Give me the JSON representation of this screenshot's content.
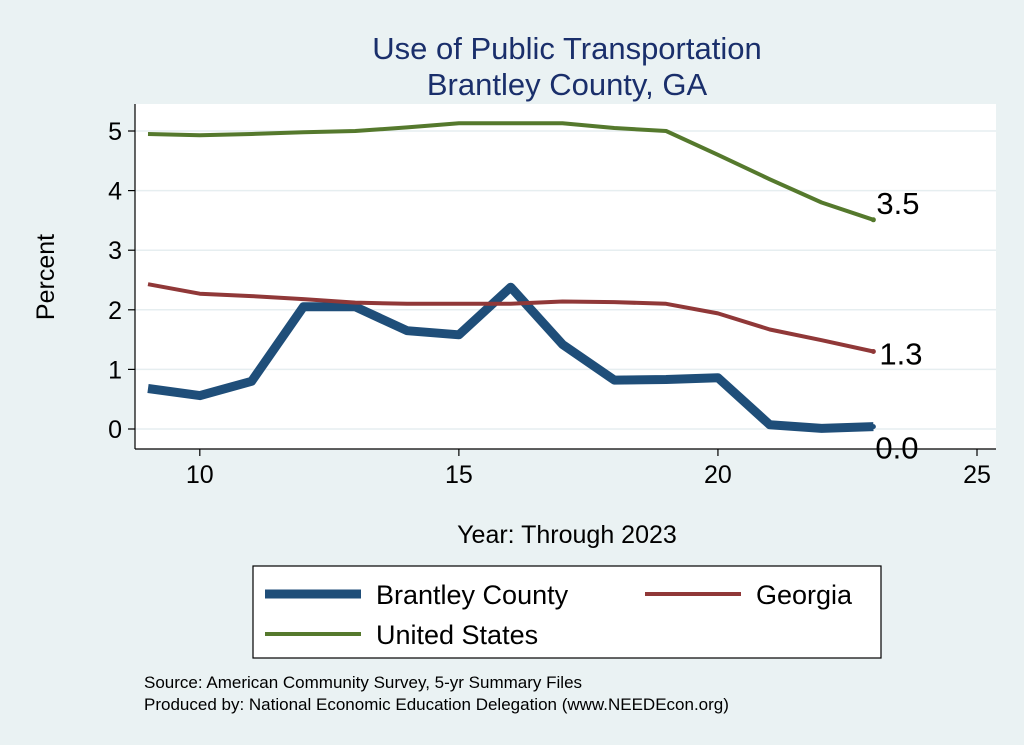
{
  "chart_data": {
    "type": "line",
    "title": "Use of Public Transportation",
    "subtitle": "Brantley County, GA",
    "xlabel": "Year: Through 2023",
    "ylabel": "Percent",
    "xlim": [
      9,
      25
    ],
    "ylim": [
      0,
      5
    ],
    "xticks": [
      10,
      15,
      20,
      25
    ],
    "yticks": [
      0,
      1,
      2,
      3,
      4,
      5
    ],
    "grid": true,
    "legend_position": "bottom",
    "x": [
      9,
      10,
      11,
      12,
      13,
      14,
      15,
      16,
      17,
      18,
      19,
      20,
      21,
      22,
      23
    ],
    "series": [
      {
        "name": "Brantley County",
        "color": "#1f4e79",
        "values": [
          0.68,
          0.56,
          0.8,
          2.05,
          2.05,
          1.65,
          1.58,
          2.38,
          1.42,
          0.82,
          0.83,
          0.86,
          0.07,
          0.01,
          0.04
        ],
        "end_label": "0.0"
      },
      {
        "name": "Georgia",
        "color": "#903838",
        "values": [
          2.43,
          2.27,
          2.23,
          2.18,
          2.12,
          2.1,
          2.1,
          2.1,
          2.14,
          2.13,
          2.1,
          1.94,
          1.67,
          1.49,
          1.3
        ],
        "end_label": "1.3"
      },
      {
        "name": "United States",
        "color": "#55792d",
        "values": [
          4.95,
          4.93,
          4.95,
          4.98,
          5.0,
          5.06,
          5.13,
          5.13,
          5.13,
          5.05,
          5.0,
          4.6,
          4.19,
          3.8,
          3.51
        ],
        "end_label": "3.5"
      }
    ]
  },
  "footer": {
    "source": "Source: American Community Survey, 5-yr Summary Files",
    "produced_by": "Produced by: National Economic Education Delegation (www.NEEDEcon.org)"
  }
}
